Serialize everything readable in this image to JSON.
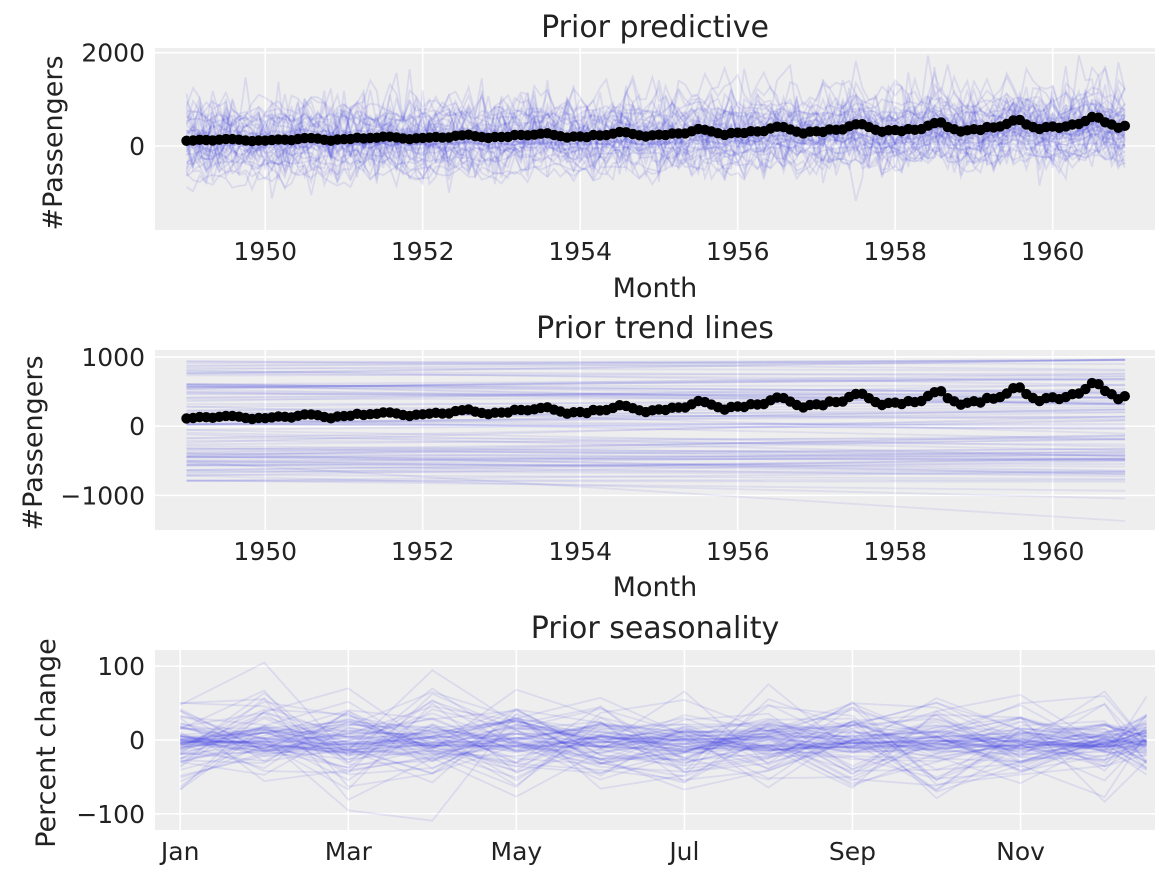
{
  "colors": {
    "panel_background": "#eeeeee",
    "grid": "#ffffff",
    "draw_line": "#3333dd",
    "observed": "#000000"
  },
  "chart_data": [
    {
      "type": "line",
      "title": "Prior predictive",
      "xlabel": "Month",
      "ylabel": "#Passengers",
      "xlim": [
        1948.6,
        1961.3
      ],
      "ylim": [
        -1800,
        2100
      ],
      "xticks": [
        1950,
        1952,
        1954,
        1956,
        1958,
        1960
      ],
      "xtick_labels": [
        "1950",
        "1952",
        "1954",
        "1956",
        "1958",
        "1960"
      ],
      "yticks": [
        0,
        2000
      ],
      "ytick_labels": [
        "0",
        "2000"
      ],
      "grid": true,
      "legend": "none",
      "series": [
        {
          "role": "prior predictive draws",
          "style": "many faint blue lines",
          "x_start": 1949.0,
          "x_end": 1960.92,
          "y_spread": [
            -1600,
            1900
          ]
        },
        {
          "role": "observed",
          "style": "black line with dots",
          "x_start": 1949.0,
          "x_step_months": 1,
          "values": [
            112,
            118,
            132,
            129,
            121,
            135,
            148,
            148,
            136,
            119,
            104,
            118,
            115,
            126,
            141,
            135,
            125,
            149,
            170,
            170,
            158,
            133,
            114,
            140,
            145,
            150,
            178,
            163,
            172,
            178,
            199,
            199,
            184,
            162,
            146,
            166,
            171,
            180,
            193,
            181,
            183,
            218,
            230,
            242,
            209,
            191,
            172,
            194,
            196,
            196,
            236,
            235,
            229,
            243,
            264,
            272,
            237,
            211,
            180,
            201,
            204,
            188,
            235,
            227,
            234,
            264,
            302,
            293,
            259,
            229,
            203,
            229,
            242,
            233,
            267,
            269,
            270,
            315,
            364,
            347,
            312,
            274,
            237,
            278,
            284,
            277,
            317,
            313,
            318,
            374,
            413,
            405,
            355,
            306,
            271,
            306,
            315,
            301,
            356,
            348,
            355,
            422,
            465,
            467,
            404,
            347,
            305,
            336,
            340,
            318,
            362,
            348,
            363,
            435,
            491,
            505,
            404,
            359,
            310,
            337,
            360,
            342,
            406,
            396,
            420,
            472,
            548,
            559,
            463,
            407,
            362,
            405,
            417,
            391,
            419,
            461,
            472,
            535,
            622,
            606,
            508,
            461,
            390,
            432
          ]
        }
      ]
    },
    {
      "type": "line",
      "title": "Prior trend lines",
      "xlabel": "Month",
      "ylabel": "#Passengers",
      "xlim": [
        1948.6,
        1961.3
      ],
      "ylim": [
        -1500,
        1100
      ],
      "xticks": [
        1950,
        1952,
        1954,
        1956,
        1958,
        1960
      ],
      "xtick_labels": [
        "1950",
        "1952",
        "1954",
        "1956",
        "1958",
        "1960"
      ],
      "yticks": [
        -1000,
        0,
        1000
      ],
      "ytick_labels": [
        "−1000",
        "0",
        "1000"
      ],
      "grid": true,
      "legend": "none",
      "series": [
        {
          "role": "prior trend draws",
          "style": "many faint straight blue lines",
          "x_start": 1949.0,
          "x_end": 1960.92,
          "start_range": [
            -800,
            950
          ],
          "end_range": [
            -1370,
            960
          ]
        },
        {
          "role": "observed",
          "style": "black line with dots",
          "same_as_panel": 0
        }
      ]
    },
    {
      "type": "line",
      "title": "Prior seasonality",
      "xlabel": "",
      "ylabel": "Percent change",
      "xlim": [
        -0.3,
        11.6
      ],
      "ylim": [
        -122,
        122
      ],
      "xticks": [
        0,
        2,
        4,
        6,
        8,
        10
      ],
      "xtick_labels": [
        "Jan",
        "Mar",
        "May",
        "Jul",
        "Sep",
        "Nov"
      ],
      "yticks": [
        -100,
        0,
        100
      ],
      "ytick_labels": [
        "−100",
        "0",
        "100"
      ],
      "grid": true,
      "legend": "none",
      "series": [
        {
          "role": "prior seasonality draws",
          "style": "many faint blue lines, 12 monthly points each",
          "y_spread": [
            -110,
            115
          ]
        }
      ]
    }
  ]
}
